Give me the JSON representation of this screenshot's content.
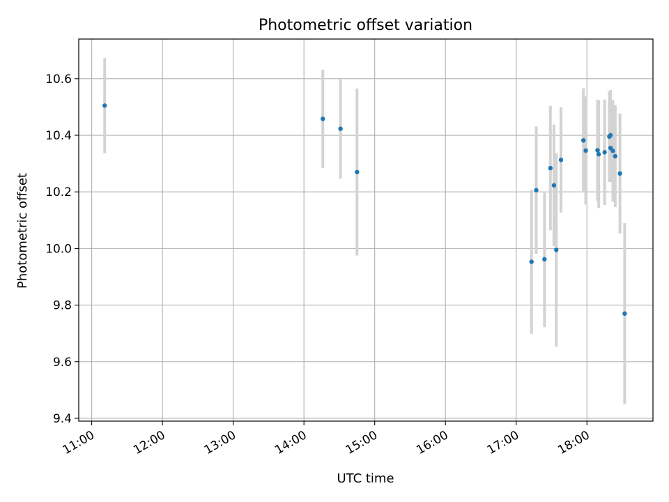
{
  "chart_data": {
    "type": "scatter",
    "title": "Photometric offset variation",
    "xlabel": "UTC time",
    "ylabel": "Photometric offset",
    "x_unit": "time of day (UTC)",
    "xlim": [
      "10:49",
      "18:56"
    ],
    "ylim": [
      9.39,
      10.74
    ],
    "xticks": [
      "11:00",
      "12:00",
      "13:00",
      "14:00",
      "15:00",
      "16:00",
      "17:00",
      "18:00"
    ],
    "yticks": [
      9.4,
      9.6,
      9.8,
      10.0,
      10.2,
      10.4,
      10.6
    ],
    "ytick_labels": [
      "9.4",
      "9.6",
      "9.8",
      "10.0",
      "10.2",
      "10.4",
      "10.6"
    ],
    "grid": true,
    "xtick_rotation_deg": 30,
    "marker_color": "#1f77b4",
    "errorbar_color": "#d3d3d3",
    "series": [
      {
        "points": [
          {
            "x": "11:11",
            "y": 10.505,
            "err": 0.168
          },
          {
            "x": "14:16",
            "y": 10.458,
            "err": 0.174
          },
          {
            "x": "14:31",
            "y": 10.423,
            "err": 0.176
          },
          {
            "x": "14:45",
            "y": 10.27,
            "err": 0.295
          },
          {
            "x": "17:13",
            "y": 9.953,
            "err": 0.254
          },
          {
            "x": "17:17",
            "y": 10.206,
            "err": 0.225
          },
          {
            "x": "17:24",
            "y": 9.962,
            "err": 0.24
          },
          {
            "x": "17:29",
            "y": 10.284,
            "err": 0.22
          },
          {
            "x": "17:32",
            "y": 10.223,
            "err": 0.215
          },
          {
            "x": "17:34",
            "y": 9.995,
            "err": 0.342
          },
          {
            "x": "17:38",
            "y": 10.313,
            "err": 0.186
          },
          {
            "x": "17:57",
            "y": 10.382,
            "err": 0.184
          },
          {
            "x": "17:59",
            "y": 10.346,
            "err": 0.191
          },
          {
            "x": "18:09",
            "y": 10.347,
            "err": 0.179
          },
          {
            "x": "18:10",
            "y": 10.333,
            "err": 0.19
          },
          {
            "x": "18:15",
            "y": 10.34,
            "err": 0.186
          },
          {
            "x": "18:19",
            "y": 10.395,
            "err": 0.16
          },
          {
            "x": "18:20",
            "y": 10.4,
            "err": 0.16
          },
          {
            "x": "18:20",
            "y": 10.355,
            "err": 0.12
          },
          {
            "x": "18:22",
            "y": 10.345,
            "err": 0.18
          },
          {
            "x": "18:24",
            "y": 10.326,
            "err": 0.18
          },
          {
            "x": "18:28",
            "y": 10.265,
            "err": 0.212
          },
          {
            "x": "18:32",
            "y": 9.77,
            "err": 0.32
          }
        ]
      }
    ]
  }
}
